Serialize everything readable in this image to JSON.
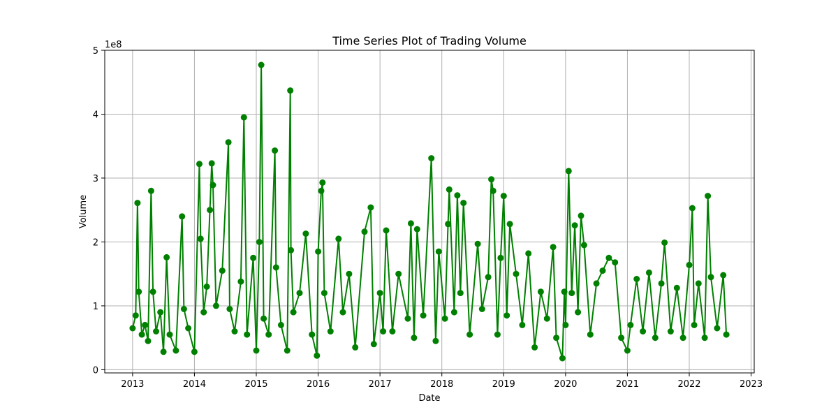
{
  "chart_data": {
    "type": "line",
    "title": "Time Series Plot of Trading Volume",
    "xlabel": "Date",
    "ylabel": "Volume",
    "y_scale_label": "1e8",
    "x_ticks": [
      "2013",
      "2014",
      "2015",
      "2016",
      "2017",
      "2018",
      "2019",
      "2020",
      "2021",
      "2022",
      "2023"
    ],
    "y_ticks": [
      "0",
      "1",
      "2",
      "3",
      "4",
      "5"
    ],
    "xlim": [
      2012.55,
      2023.05
    ],
    "ylim": [
      -0.05,
      5.0
    ],
    "grid": true,
    "color": "#008000",
    "marker": "circle",
    "series": [
      {
        "x": [
          2013.0,
          2013.05,
          2013.08,
          2013.1,
          2013.15,
          2013.2,
          2013.25,
          2013.3,
          2013.33,
          2013.38,
          2013.45,
          2013.5,
          2013.55,
          2013.6,
          2013.7,
          2013.8,
          2013.83,
          2013.9,
          2014.0,
          2014.08,
          2014.1,
          2014.15,
          2014.2,
          2014.25,
          2014.28,
          2014.3,
          2014.35,
          2014.45,
          2014.55,
          2014.57,
          2014.65,
          2014.75,
          2014.8,
          2014.85,
          2014.95,
          2015.0,
          2015.05,
          2015.08,
          2015.12,
          2015.2,
          2015.3,
          2015.32,
          2015.4,
          2015.5,
          2015.55,
          2015.56,
          2015.6,
          2015.7,
          2015.8,
          2015.9,
          2015.98,
          2016.0,
          2016.05,
          2016.07,
          2016.1,
          2016.2,
          2016.33,
          2016.4,
          2016.5,
          2016.6,
          2016.75,
          2016.85,
          2016.9,
          2017.0,
          2017.05,
          2017.1,
          2017.2,
          2017.3,
          2017.45,
          2017.5,
          2017.55,
          2017.6,
          2017.7,
          2017.83,
          2017.9,
          2017.95,
          2018.05,
          2018.1,
          2018.12,
          2018.2,
          2018.25,
          2018.3,
          2018.35,
          2018.45,
          2018.58,
          2018.65,
          2018.75,
          2018.8,
          2018.83,
          2018.9,
          2018.95,
          2019.0,
          2019.05,
          2019.1,
          2019.2,
          2019.3,
          2019.4,
          2019.5,
          2019.6,
          2019.7,
          2019.8,
          2019.85,
          2019.95,
          2019.98,
          2020.0,
          2020.05,
          2020.1,
          2020.15,
          2020.2,
          2020.25,
          2020.3,
          2020.4,
          2020.5,
          2020.6,
          2020.7,
          2020.8,
          2020.9,
          2021.0,
          2021.05,
          2021.15,
          2021.25,
          2021.35,
          2021.45,
          2021.55,
          2021.6,
          2021.7,
          2021.8,
          2021.9,
          2022.0,
          2022.05,
          2022.08,
          2022.15,
          2022.25,
          2022.3,
          2022.35,
          2022.45,
          2022.55,
          2022.6
        ],
        "y": [
          0.65,
          0.85,
          2.61,
          1.22,
          0.55,
          0.7,
          0.45,
          2.8,
          1.22,
          0.6,
          0.9,
          0.28,
          1.76,
          0.55,
          0.3,
          2.4,
          0.95,
          0.65,
          0.28,
          3.22,
          2.05,
          0.9,
          1.3,
          2.5,
          3.23,
          2.89,
          1.0,
          1.55,
          3.56,
          0.95,
          0.6,
          1.38,
          3.95,
          0.55,
          1.75,
          0.3,
          2.0,
          4.77,
          0.8,
          0.55,
          3.43,
          1.6,
          0.7,
          0.3,
          4.37,
          1.87,
          0.9,
          1.2,
          2.13,
          0.55,
          0.22,
          1.85,
          2.8,
          2.93,
          1.2,
          0.6,
          2.05,
          0.9,
          1.5,
          0.35,
          2.16,
          2.54,
          0.4,
          1.2,
          0.6,
          2.18,
          0.6,
          1.5,
          0.8,
          2.29,
          0.5,
          2.2,
          0.85,
          3.31,
          0.45,
          1.85,
          0.8,
          2.28,
          2.82,
          0.9,
          2.73,
          1.2,
          2.61,
          0.55,
          1.97,
          0.95,
          1.45,
          2.98,
          2.8,
          0.55,
          1.75,
          2.72,
          0.85,
          2.28,
          1.5,
          0.7,
          1.82,
          0.35,
          1.22,
          0.8,
          1.92,
          0.5,
          0.18,
          1.22,
          0.7,
          3.11,
          1.2,
          2.26,
          0.9,
          2.41,
          1.95,
          0.55,
          1.35,
          1.55,
          1.75,
          1.68,
          0.5,
          0.3,
          0.7,
          1.42,
          0.6,
          1.52,
          0.5,
          1.35,
          1.99,
          0.6,
          1.28,
          0.5,
          1.64,
          2.53,
          0.7,
          1.35,
          0.5,
          2.72,
          1.45,
          0.65,
          1.48,
          0.55
        ]
      }
    ]
  }
}
